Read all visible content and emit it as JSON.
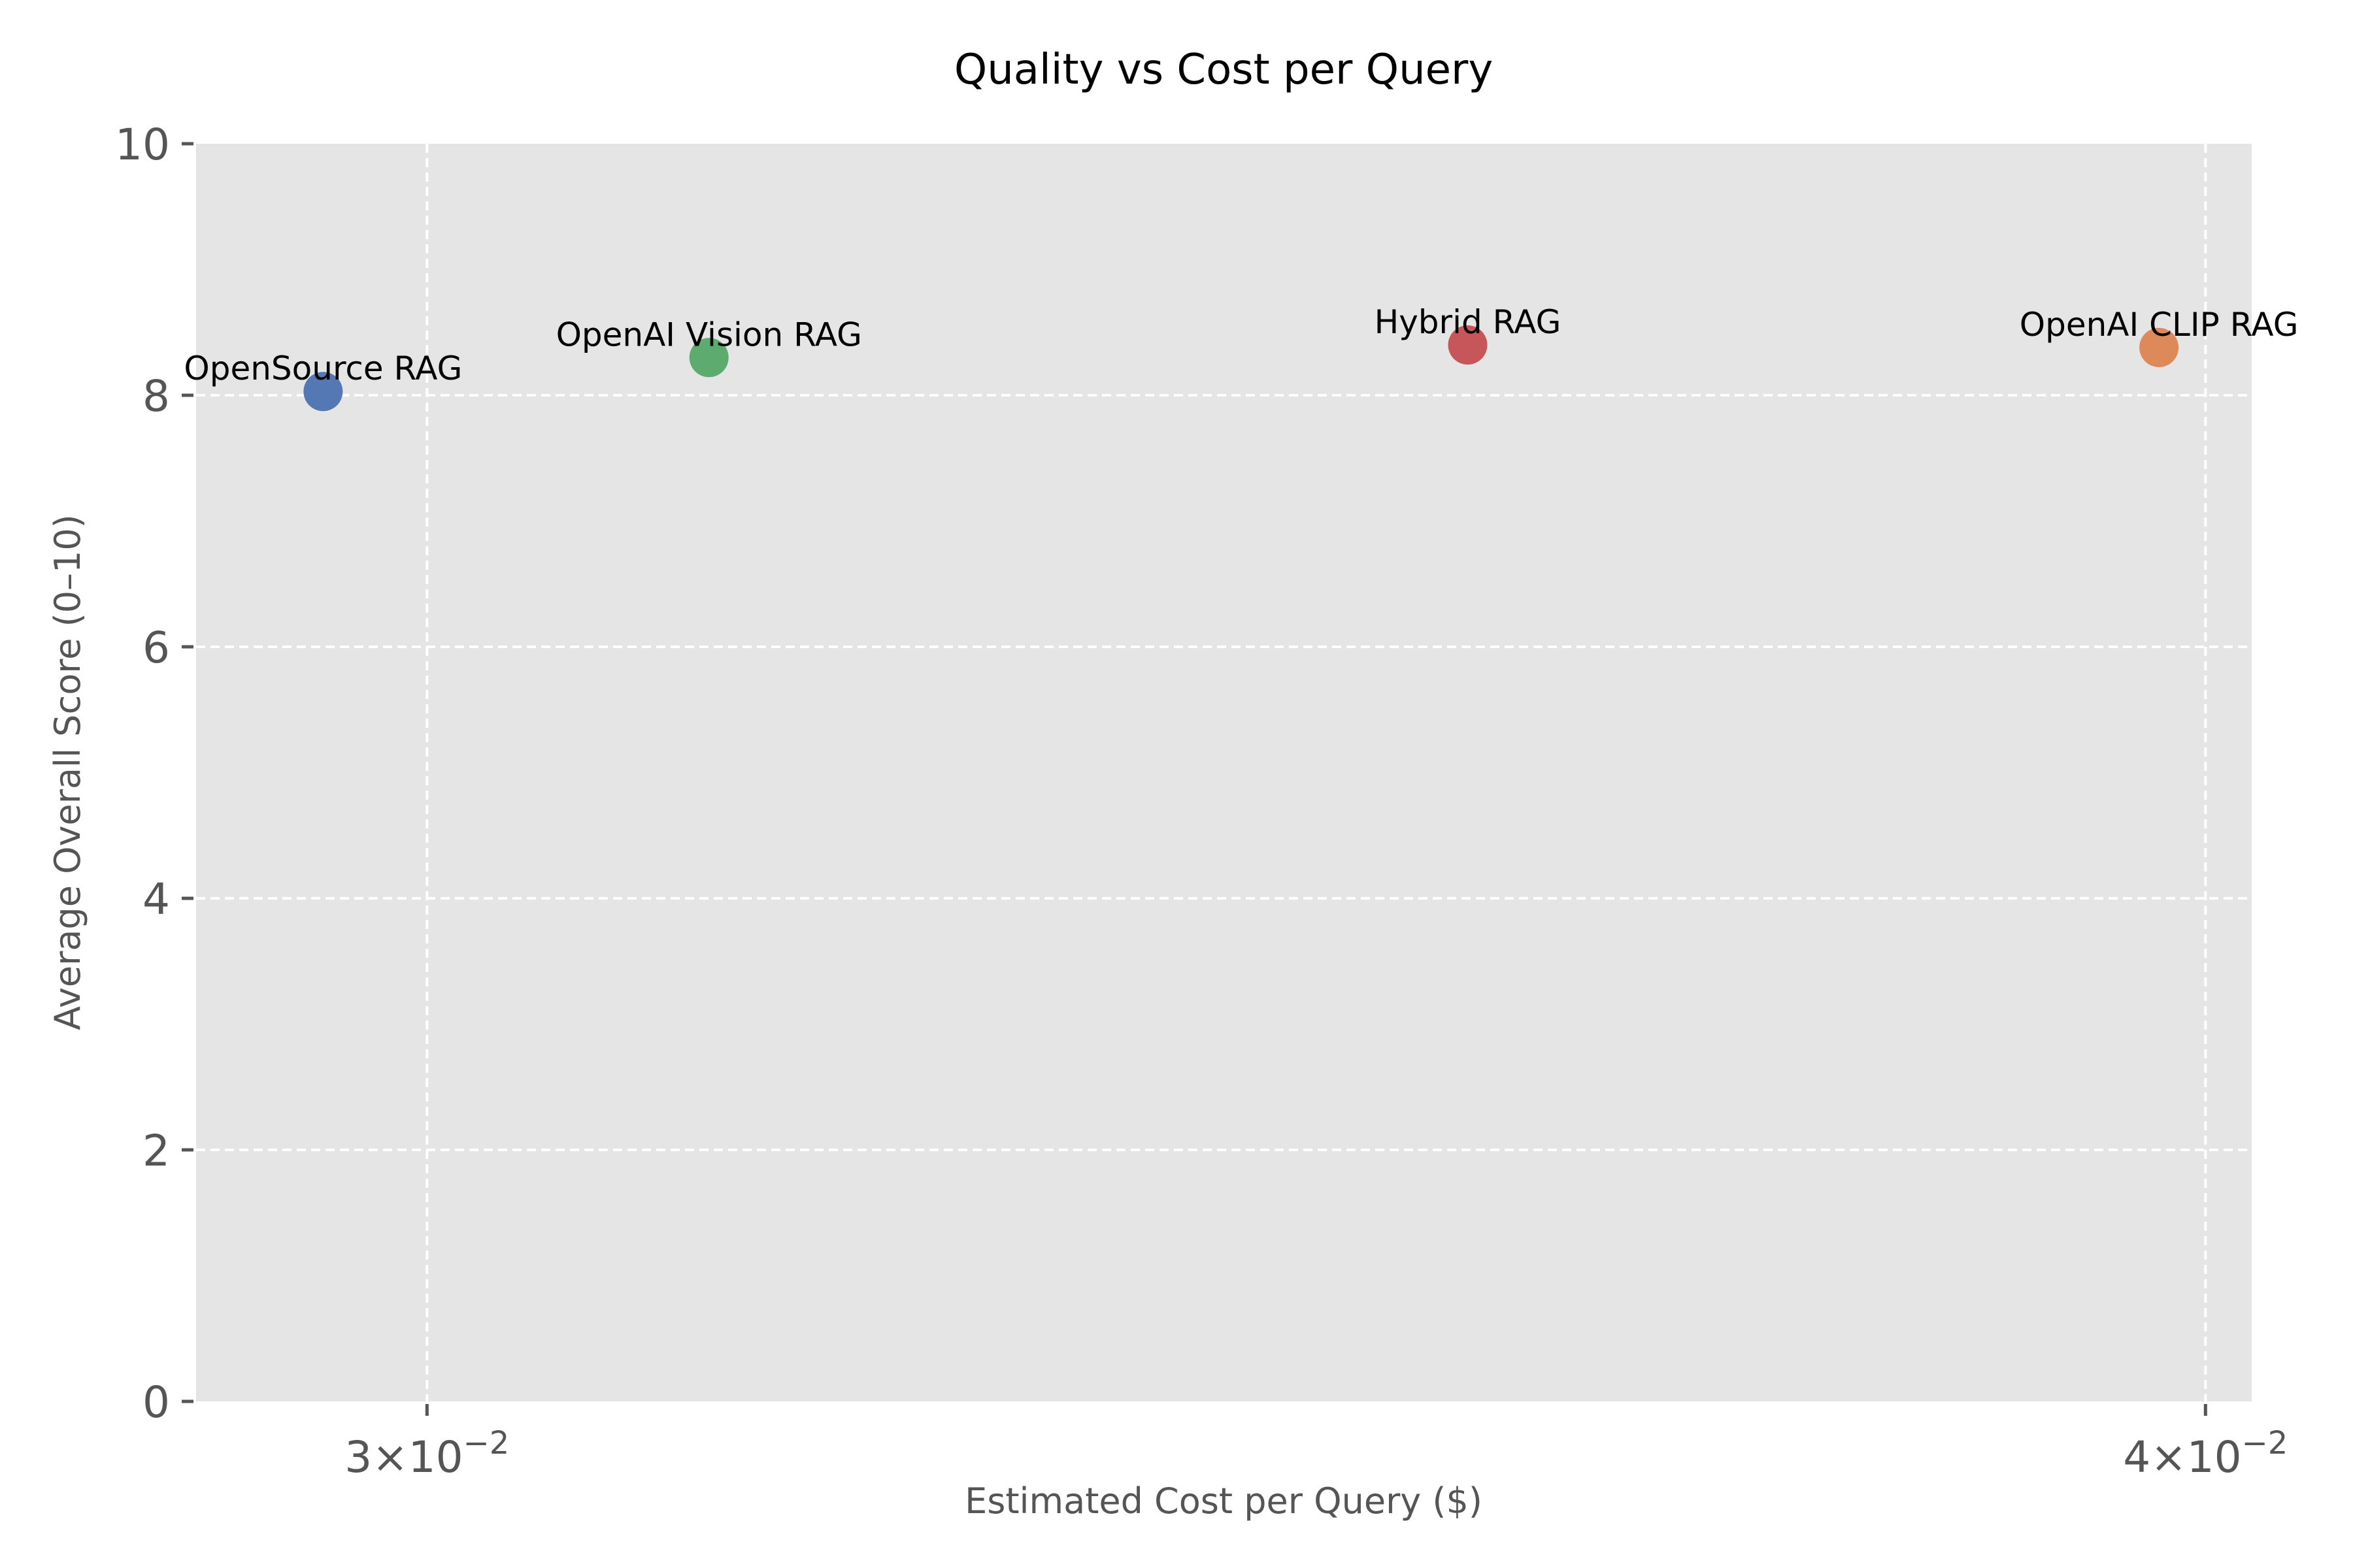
{
  "chart_data": {
    "type": "scatter",
    "title": "Quality vs Cost per Query",
    "xlabel": "Estimated Cost per Query ($)",
    "ylabel": "Average Overall Score (0–10)",
    "xscale": "log",
    "xlim": [
      0.0289,
      0.0403
    ],
    "ylim": [
      0,
      10
    ],
    "xticks": [
      {
        "value": 0.03,
        "mantissa": "3",
        "exponent": "−2"
      },
      {
        "value": 0.04,
        "mantissa": "4",
        "exponent": "−2"
      }
    ],
    "yticks": [
      0,
      2,
      4,
      6,
      8,
      10
    ],
    "grid": true,
    "background": "#e5e5e5",
    "points": [
      {
        "label": "OpenSource RAG",
        "x": 0.0295,
        "y": 8.03,
        "color": "#4c72b0"
      },
      {
        "label": "OpenAI Vision RAG",
        "x": 0.0314,
        "y": 8.3,
        "color": "#55a868"
      },
      {
        "label": "Hybrid RAG",
        "x": 0.0355,
        "y": 8.4,
        "color": "#c44e52"
      },
      {
        "label": "OpenAI CLIP RAG",
        "x": 0.0397,
        "y": 8.38,
        "color": "#dd8452"
      }
    ]
  }
}
